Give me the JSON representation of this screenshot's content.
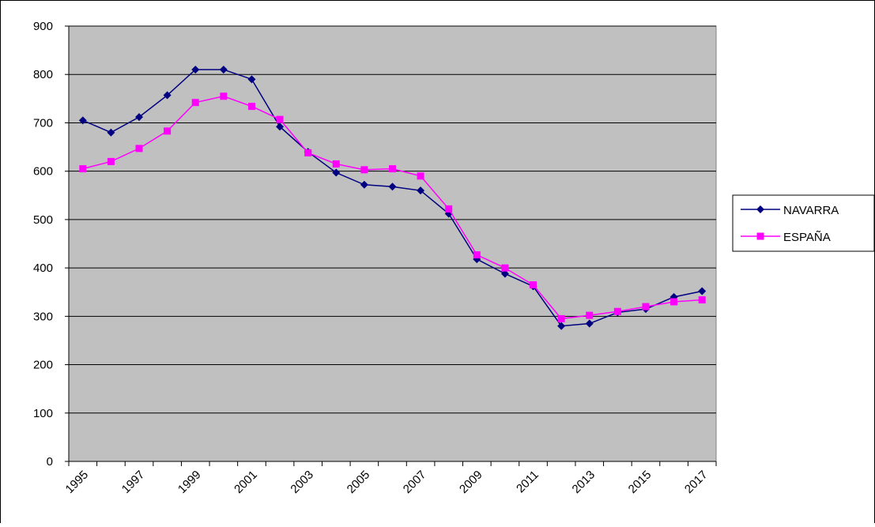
{
  "chart_data": {
    "type": "line",
    "categories": [
      "1995",
      null,
      "1997",
      null,
      "1999",
      null,
      "2001",
      null,
      "2003",
      null,
      "2005",
      null,
      "2007",
      null,
      "2009",
      null,
      "2011",
      null,
      "2013",
      null,
      "2015",
      null,
      "2017"
    ],
    "series": [
      {
        "name": "NAVARRA",
        "color": "#000080",
        "marker": "diamond",
        "values": [
          705,
          680,
          712,
          757,
          810,
          810,
          790,
          692,
          640,
          597,
          572,
          568,
          560,
          512,
          418,
          388,
          362,
          280,
          285,
          308,
          315,
          340,
          352
        ]
      },
      {
        "name": "ESPAÑA",
        "color": "#ff00ff",
        "marker": "square",
        "values": [
          605,
          620,
          647,
          683,
          742,
          755,
          734,
          707,
          638,
          615,
          603,
          605,
          590,
          522,
          427,
          400,
          365,
          295,
          302,
          310,
          320,
          330,
          334
        ]
      }
    ],
    "ylim": [
      0,
      900
    ],
    "yticks": [
      0,
      100,
      200,
      300,
      400,
      500,
      600,
      700,
      800,
      900
    ],
    "grid": true,
    "legend": "right"
  }
}
